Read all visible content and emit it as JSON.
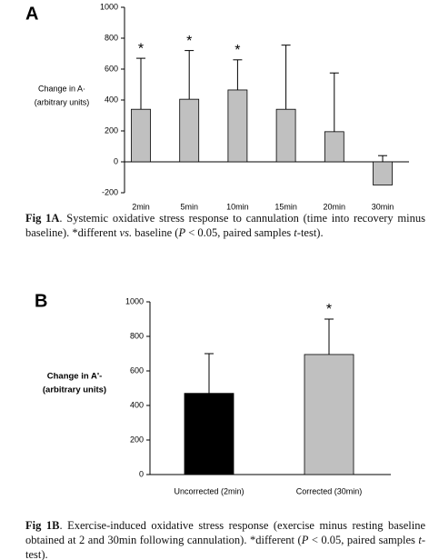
{
  "chart_data": [
    {
      "type": "bar",
      "panel": "A",
      "ylabel": [
        "Change in A·",
        "(arbitrary units)"
      ],
      "categories": [
        "2min",
        "5min",
        "10min",
        "15min",
        "20min",
        "30min"
      ],
      "values": [
        340,
        405,
        465,
        340,
        195,
        -150
      ],
      "errors": [
        330,
        315,
        195,
        415,
        380,
        190
      ],
      "markers": [
        "*",
        "*",
        "*",
        null,
        null,
        null
      ],
      "color": "#c0c0c0",
      "ylim": [
        -200,
        1000
      ],
      "yticks": [
        -200,
        0,
        200,
        400,
        600,
        800,
        1000
      ],
      "caption": [
        {
          "text": "Fig 1A",
          "bold": true
        },
        {
          "text": ". Systemic oxidative stress response to cannulation (time into recovery minus baseline). *different "
        },
        {
          "text": "vs.",
          "italic": true
        },
        {
          "text": " baseline ("
        },
        {
          "text": "P",
          "italic": true
        },
        {
          "text": " < 0.05, paired samples "
        },
        {
          "text": "t",
          "italic": true
        },
        {
          "text": "-test)."
        }
      ]
    },
    {
      "type": "bar",
      "panel": "B",
      "ylabel": [
        "Change in A'-",
        "(arbitrary units)"
      ],
      "ylabel_bold": true,
      "categories": [
        "Uncorrected (2min)",
        "Corrected (30min)"
      ],
      "values": [
        470,
        695
      ],
      "errors": [
        230,
        205
      ],
      "markers": [
        null,
        "*"
      ],
      "colors": [
        "#000000",
        "#c0c0c0"
      ],
      "ylim": [
        0,
        1000
      ],
      "yticks": [
        0,
        200,
        400,
        600,
        800,
        1000
      ],
      "caption": [
        {
          "text": "Fig 1B",
          "bold": true
        },
        {
          "text": ". Exercise-induced oxidative stress response (exercise minus resting baseline obtained at 2 and 30min following cannulation). *different ("
        },
        {
          "text": "P",
          "italic": true
        },
        {
          "text": " < 0.05, paired samples "
        },
        {
          "text": "t",
          "italic": true
        },
        {
          "text": "-test)."
        }
      ]
    }
  ]
}
